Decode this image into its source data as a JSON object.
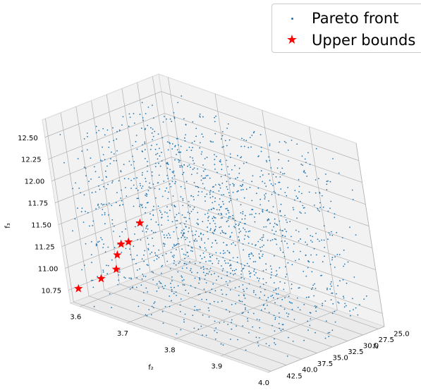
{
  "chart_data": {
    "type": "scatter3d",
    "colors": {
      "pareto": "#1f77b4",
      "upper": "#ff0000",
      "pane": "#ebebeb",
      "grid": "#b0b0b0"
    },
    "axes": {
      "x": {
        "label": "f₁",
        "range": [
          24,
          43
        ],
        "ticks": [
          25.0,
          27.5,
          30.0,
          32.5,
          35.0,
          37.5,
          40.0,
          42.5
        ],
        "tick_labels": [
          "25.0",
          "27.5",
          "30.0",
          "32.5",
          "35.0",
          "37.5",
          "40.0",
          "42.5"
        ]
      },
      "y": {
        "label": "f₂",
        "range": [
          3.58,
          4.0
        ],
        "ticks": [
          3.6,
          3.7,
          3.8,
          3.9,
          4.0
        ],
        "tick_labels": [
          "3.6",
          "3.7",
          "3.8",
          "3.9",
          "4.0"
        ]
      },
      "z": {
        "label": "f₃",
        "range": [
          10.6,
          12.7
        ],
        "ticks": [
          10.75,
          11.0,
          11.25,
          11.5,
          11.75,
          12.0,
          12.25,
          12.5
        ],
        "tick_labels": [
          "10.75",
          "11.00",
          "11.25",
          "11.50",
          "11.75",
          "12.00",
          "12.25",
          "12.50"
        ]
      }
    },
    "grid": true,
    "legend": {
      "position": "top-right",
      "entries": [
        "Pareto front",
        "Upper bounds"
      ]
    },
    "series": [
      {
        "name": "Pareto front",
        "marker": "dot",
        "count": 1500,
        "x_range": [
          24.5,
          43
        ],
        "y_range": [
          3.59,
          4.0
        ],
        "z_range": [
          10.65,
          12.6
        ]
      },
      {
        "name": "Upper bounds",
        "marker": "star",
        "points": [
          {
            "x": 42.8,
            "y": 3.6,
            "z": 10.8
          },
          {
            "x": 42.5,
            "y": 3.65,
            "z": 11.0
          },
          {
            "x": 42.0,
            "y": 3.68,
            "z": 11.15
          },
          {
            "x": 41.5,
            "y": 3.68,
            "z": 11.3
          },
          {
            "x": 41.0,
            "y": 3.685,
            "z": 11.42
          },
          {
            "x": 40.5,
            "y": 3.695,
            "z": 11.45
          },
          {
            "x": 40.0,
            "y": 3.72,
            "z": 11.7
          }
        ]
      }
    ]
  }
}
